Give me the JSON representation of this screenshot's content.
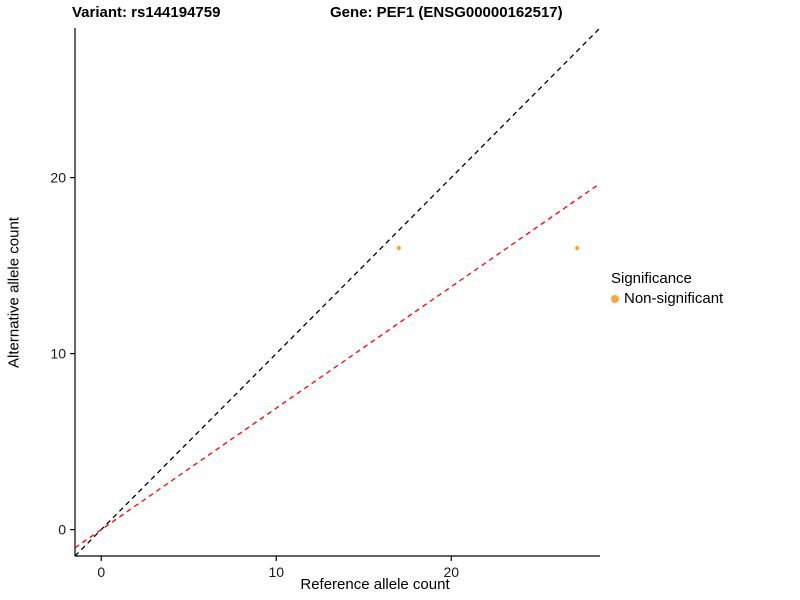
{
  "chart_data": {
    "type": "scatter",
    "titles": {
      "variant": "Variant: rs144194759",
      "gene": "Gene: PEF1 (ENSG00000162517)"
    },
    "xlabel": "Reference allele count",
    "ylabel": "Alternative allele count",
    "xlim": [
      -1.5,
      28.5
    ],
    "ylim": [
      -1.5,
      28.5
    ],
    "x_ticks": [
      0,
      10,
      20
    ],
    "y_ticks": [
      0,
      10,
      20
    ],
    "grid": false,
    "points": [
      {
        "x": 17.0,
        "y": 16.0,
        "series": "Non-significant"
      },
      {
        "x": 27.2,
        "y": 16.0,
        "series": "Non-significant"
      }
    ],
    "point_color": "#FCA63C",
    "point_radius": 2.2,
    "lines": [
      {
        "name": "identity-line",
        "slope": 1.0,
        "intercept": 0,
        "color": "#000000",
        "dash": "5,4"
      },
      {
        "name": "fitted-ratio-line",
        "slope": 0.69,
        "intercept": 0,
        "color": "#FF0000",
        "dash": "5,4"
      }
    ],
    "legend": {
      "position": "right",
      "title": "Significance",
      "items": [
        {
          "label": "Non-significant",
          "color": "#FCA63C"
        }
      ]
    },
    "axis_color": "#000000",
    "tick_label_color": "#1a1a1a"
  }
}
